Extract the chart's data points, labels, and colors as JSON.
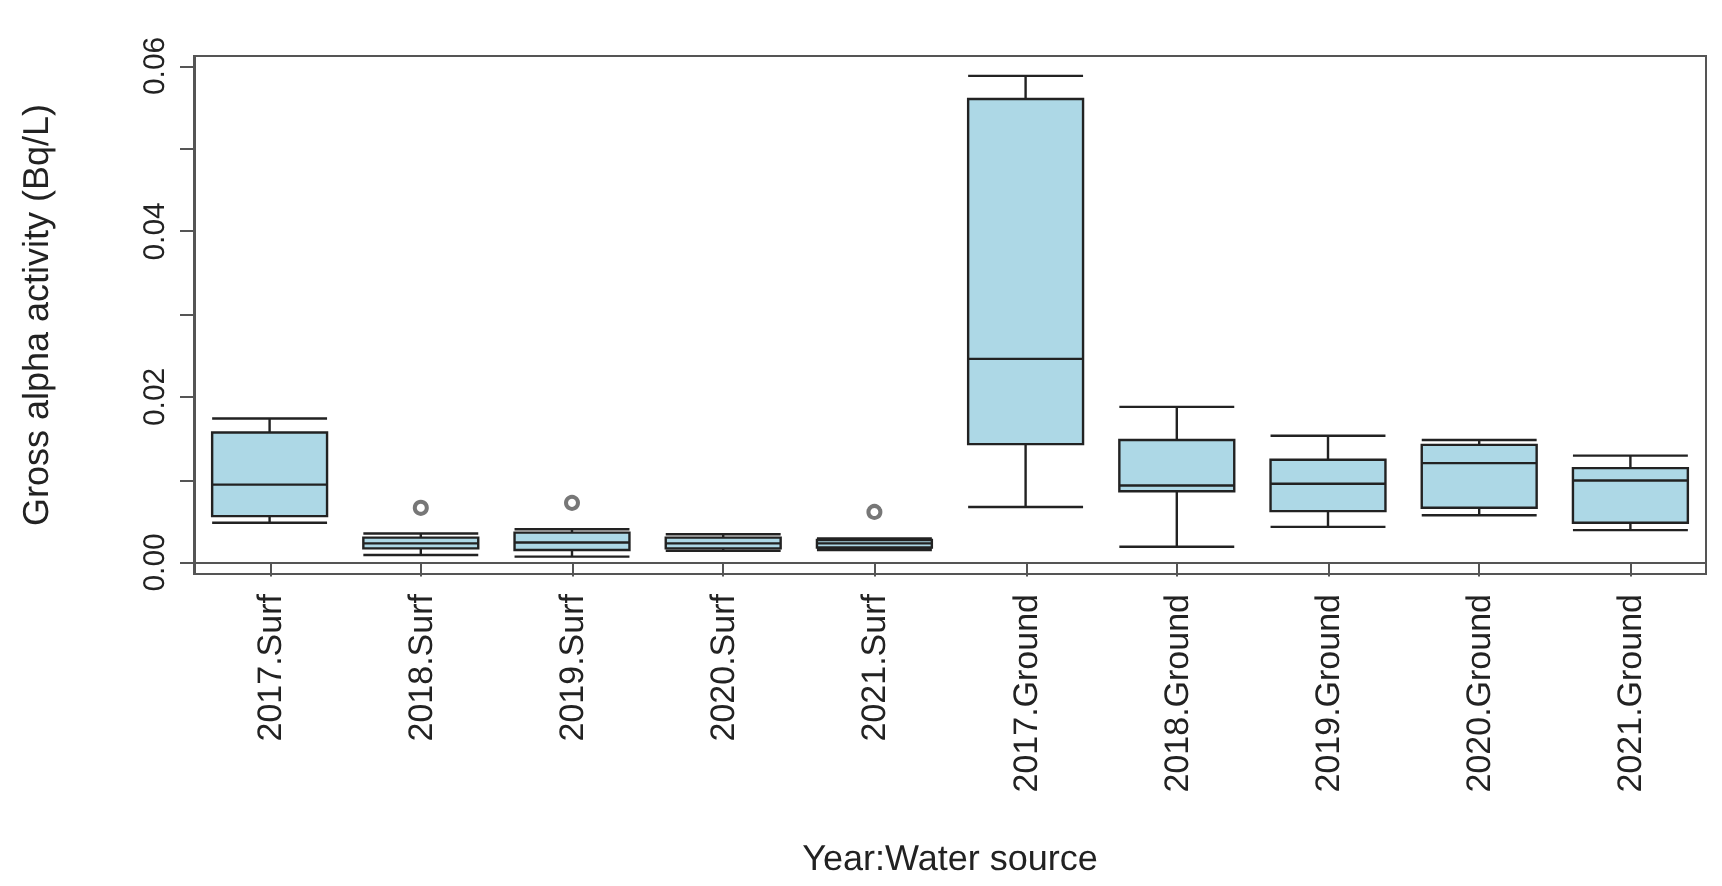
{
  "chart_data": {
    "type": "box",
    "xlabel": "Year:Water source",
    "ylabel": "Gross alpha activity (Bq/L)",
    "categories": [
      "2017.Surf",
      "2018.Surf",
      "2019.Surf",
      "2020.Surf",
      "2021.Surf",
      "2017.Ground",
      "2018.Ground",
      "2019.Ground",
      "2020.Ground",
      "2021.Ground"
    ],
    "color": "#add8e6",
    "boxes": [
      {
        "low": 0.0048,
        "q1": 0.0056,
        "median": 0.0094,
        "q3": 0.0157,
        "high": 0.0174
      },
      {
        "low": 0.0009,
        "q1": 0.0017,
        "median": 0.0023,
        "q3": 0.003,
        "high": 0.0035,
        "outliers": [
          0.0066
        ]
      },
      {
        "low": 0.0007,
        "q1": 0.0015,
        "median": 0.0024,
        "q3": 0.0036,
        "high": 0.004,
        "outliers": [
          0.0072
        ]
      },
      {
        "low": 0.0014,
        "q1": 0.0017,
        "median": 0.0023,
        "q3": 0.003,
        "high": 0.0034
      },
      {
        "low": 0.0015,
        "q1": 0.0018,
        "median": 0.0023,
        "q3": 0.0027,
        "high": 0.0029,
        "outliers": [
          0.0061
        ]
      },
      {
        "low": 0.0067,
        "q1": 0.0143,
        "median": 0.0246,
        "q3": 0.056,
        "high": 0.0588
      },
      {
        "low": 0.0019,
        "q1": 0.0086,
        "median": 0.0093,
        "q3": 0.0148,
        "high": 0.0188
      },
      {
        "low": 0.0043,
        "q1": 0.0062,
        "median": 0.0095,
        "q3": 0.0124,
        "high": 0.0153
      },
      {
        "low": 0.0057,
        "q1": 0.0066,
        "median": 0.012,
        "q3": 0.0142,
        "high": 0.0148
      },
      {
        "low": 0.0039,
        "q1": 0.0048,
        "median": 0.0099,
        "q3": 0.0114,
        "high": 0.0129
      }
    ],
    "ylim": [
      -0.0014,
      0.0612
    ],
    "yticks": [
      {
        "value": 0,
        "label": "0.00"
      },
      {
        "value": 0.01,
        "label": null
      },
      0.02,
      {
        "value": 0.03,
        "label": null
      },
      0.04,
      {
        "value": 0.05,
        "label": null
      },
      0.06
    ]
  }
}
